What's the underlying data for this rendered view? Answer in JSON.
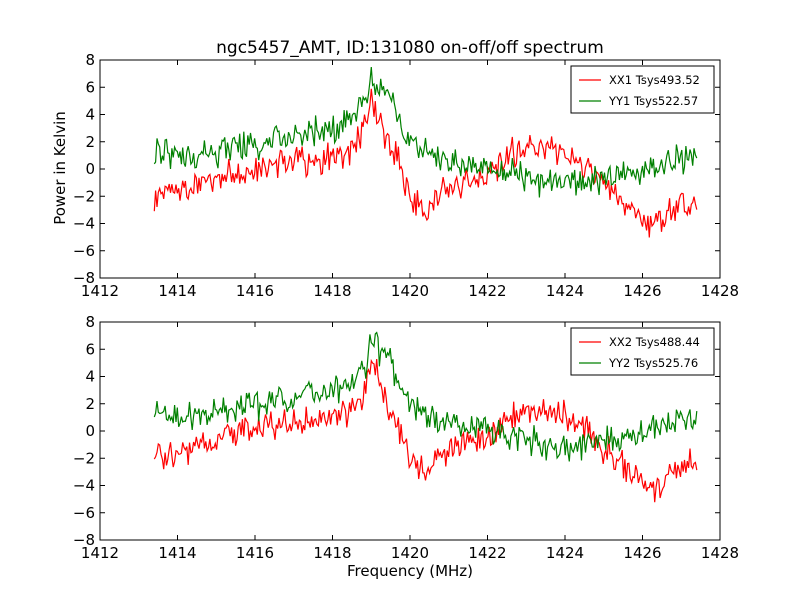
{
  "chart_data": [
    {
      "type": "line",
      "title": "ngc5457_AMT, ID:131080 on-off/off spectrum",
      "xlabel": "",
      "ylabel": "Power in Kelvin",
      "xlim": [
        1412,
        1428
      ],
      "ylim": [
        -8,
        8
      ],
      "xticks": [
        "1412",
        "1414",
        "1416",
        "1418",
        "1420",
        "1422",
        "1424",
        "1426",
        "1428"
      ],
      "yticks": [
        "8",
        "6",
        "4",
        "2",
        "0",
        "−2",
        "−4",
        "−6",
        "−8"
      ],
      "legend_position": "top-right",
      "grid": false,
      "series": [
        {
          "name": "XX1 Tsys493.52",
          "color": "#ff0000",
          "x": [
            1413.4,
            1414.0,
            1414.5,
            1415.0,
            1415.5,
            1416.0,
            1416.5,
            1417.0,
            1417.5,
            1418.0,
            1418.5,
            1418.9,
            1419.0,
            1419.2,
            1419.4,
            1419.7,
            1420.0,
            1420.4,
            1420.8,
            1421.2,
            1421.6,
            1422.0,
            1422.5,
            1423.0,
            1423.5,
            1424.0,
            1424.4,
            1424.8,
            1425.2,
            1425.6,
            1426.0,
            1426.3,
            1426.6,
            1427.0,
            1427.4
          ],
          "values": [
            -1.8,
            -1.5,
            -1.2,
            -0.6,
            -0.3,
            0.1,
            0.4,
            0.7,
            0.6,
            0.8,
            1.2,
            3.5,
            5.2,
            3.8,
            1.8,
            0.5,
            -2.0,
            -3.3,
            -1.6,
            -1.2,
            -0.8,
            -0.4,
            1.0,
            1.6,
            1.7,
            1.2,
            0.3,
            -0.8,
            -1.8,
            -2.8,
            -3.5,
            -4.2,
            -3.6,
            -2.5,
            -2.3
          ]
        },
        {
          "name": "YY1 Tsys522.57",
          "color": "#008000",
          "x": [
            1413.4,
            1414.0,
            1414.5,
            1415.0,
            1415.5,
            1416.0,
            1416.5,
            1417.0,
            1417.5,
            1418.0,
            1418.5,
            1418.9,
            1419.0,
            1419.2,
            1419.4,
            1419.7,
            1420.0,
            1420.4,
            1420.8,
            1421.2,
            1421.6,
            1422.0,
            1422.5,
            1423.0,
            1423.5,
            1424.0,
            1424.4,
            1424.8,
            1425.2,
            1425.6,
            1426.0,
            1426.3,
            1426.6,
            1427.0,
            1427.4
          ],
          "values": [
            1.2,
            0.9,
            1.0,
            1.3,
            1.6,
            1.8,
            2.2,
            2.4,
            2.7,
            3.0,
            3.6,
            5.2,
            6.7,
            5.8,
            6.0,
            3.4,
            2.0,
            1.3,
            0.7,
            0.3,
            0.1,
            0.0,
            -0.3,
            -0.6,
            -1.0,
            -1.2,
            -1.0,
            -0.9,
            -0.7,
            -0.2,
            0.0,
            0.2,
            0.5,
            0.8,
            1.0
          ]
        }
      ]
    },
    {
      "type": "line",
      "title": "",
      "xlabel": "Frequency (MHz)",
      "ylabel": "",
      "xlim": [
        1412,
        1428
      ],
      "ylim": [
        -8,
        8
      ],
      "xticks": [
        "1412",
        "1414",
        "1416",
        "1418",
        "1420",
        "1422",
        "1424",
        "1426",
        "1428"
      ],
      "yticks": [
        "8",
        "6",
        "4",
        "2",
        "0",
        "−2",
        "−4",
        "−6",
        "−8"
      ],
      "legend_position": "top-right",
      "grid": false,
      "series": [
        {
          "name": "XX2 Tsys488.44",
          "color": "#ff0000",
          "x": [
            1413.4,
            1414.0,
            1414.5,
            1415.0,
            1415.5,
            1416.0,
            1416.5,
            1417.0,
            1417.5,
            1418.0,
            1418.5,
            1418.9,
            1419.0,
            1419.2,
            1419.4,
            1419.7,
            1420.0,
            1420.4,
            1420.8,
            1421.2,
            1421.6,
            1422.0,
            1422.5,
            1423.0,
            1423.5,
            1424.0,
            1424.4,
            1424.8,
            1425.2,
            1425.6,
            1426.0,
            1426.3,
            1426.6,
            1427.0,
            1427.4
          ],
          "values": [
            -1.8,
            -1.5,
            -1.2,
            -0.6,
            -0.3,
            0.1,
            0.4,
            0.7,
            0.6,
            0.8,
            1.2,
            3.5,
            5.1,
            3.8,
            1.8,
            0.5,
            -2.0,
            -3.3,
            -1.6,
            -1.2,
            -0.8,
            -0.4,
            1.0,
            1.6,
            1.7,
            1.2,
            0.3,
            -0.8,
            -1.8,
            -2.8,
            -3.5,
            -4.2,
            -3.6,
            -2.5,
            -2.3
          ]
        },
        {
          "name": "YY2 Tsys525.76",
          "color": "#008000",
          "x": [
            1413.4,
            1414.0,
            1414.5,
            1415.0,
            1415.5,
            1416.0,
            1416.5,
            1417.0,
            1417.5,
            1418.0,
            1418.5,
            1418.9,
            1419.0,
            1419.2,
            1419.4,
            1419.7,
            1420.0,
            1420.4,
            1420.8,
            1421.2,
            1421.6,
            1422.0,
            1422.5,
            1423.0,
            1423.5,
            1424.0,
            1424.4,
            1424.8,
            1425.2,
            1425.6,
            1426.0,
            1426.3,
            1426.6,
            1427.0,
            1427.4
          ],
          "values": [
            1.2,
            0.9,
            1.0,
            1.3,
            1.6,
            1.8,
            2.2,
            2.4,
            2.7,
            3.0,
            3.6,
            5.2,
            6.7,
            5.8,
            6.0,
            3.4,
            2.0,
            1.3,
            0.7,
            0.3,
            0.1,
            0.0,
            -0.3,
            -0.6,
            -1.0,
            -1.2,
            -1.0,
            -0.9,
            -0.7,
            -0.2,
            0.0,
            0.2,
            0.5,
            0.8,
            1.0
          ]
        }
      ]
    }
  ]
}
